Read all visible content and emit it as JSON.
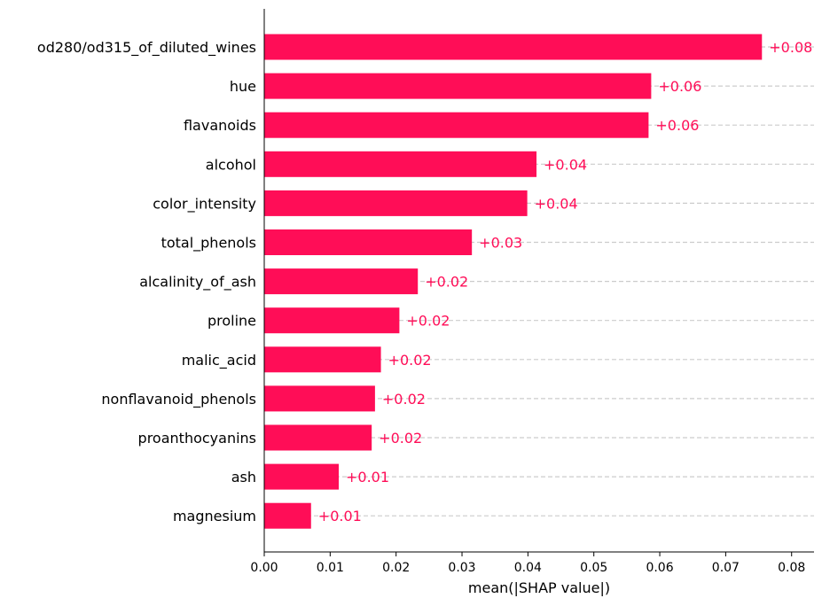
{
  "chart_data": {
    "type": "bar",
    "orientation": "horizontal",
    "xlabel": "mean(|SHAP value|)",
    "ylabel": "",
    "xlim": [
      0,
      0.0834
    ],
    "xticks": [
      "0.00",
      "0.01",
      "0.02",
      "0.03",
      "0.04",
      "0.05",
      "0.06",
      "0.07",
      "0.08"
    ],
    "grid": "dashed row guides",
    "categories": [
      "od280/od315_of_diluted_wines",
      "hue",
      "flavanoids",
      "alcohol",
      "color_intensity",
      "total_phenols",
      "alcalinity_of_ash",
      "proline",
      "malic_acid",
      "nonflavanoid_phenols",
      "proanthocyanins",
      "ash",
      "magnesium"
    ],
    "values": [
      0.0755,
      0.0587,
      0.0583,
      0.0413,
      0.0399,
      0.0315,
      0.0233,
      0.0205,
      0.0177,
      0.0168,
      0.0163,
      0.0113,
      0.0071
    ],
    "value_labels": [
      "+0.08",
      "+0.06",
      "+0.06",
      "+0.04",
      "+0.04",
      "+0.03",
      "+0.02",
      "+0.02",
      "+0.02",
      "+0.02",
      "+0.02",
      "+0.01",
      "+0.01"
    ],
    "colors": {
      "bar": "#ff0d57",
      "grid": "#cccccc",
      "text": "#000000"
    }
  }
}
